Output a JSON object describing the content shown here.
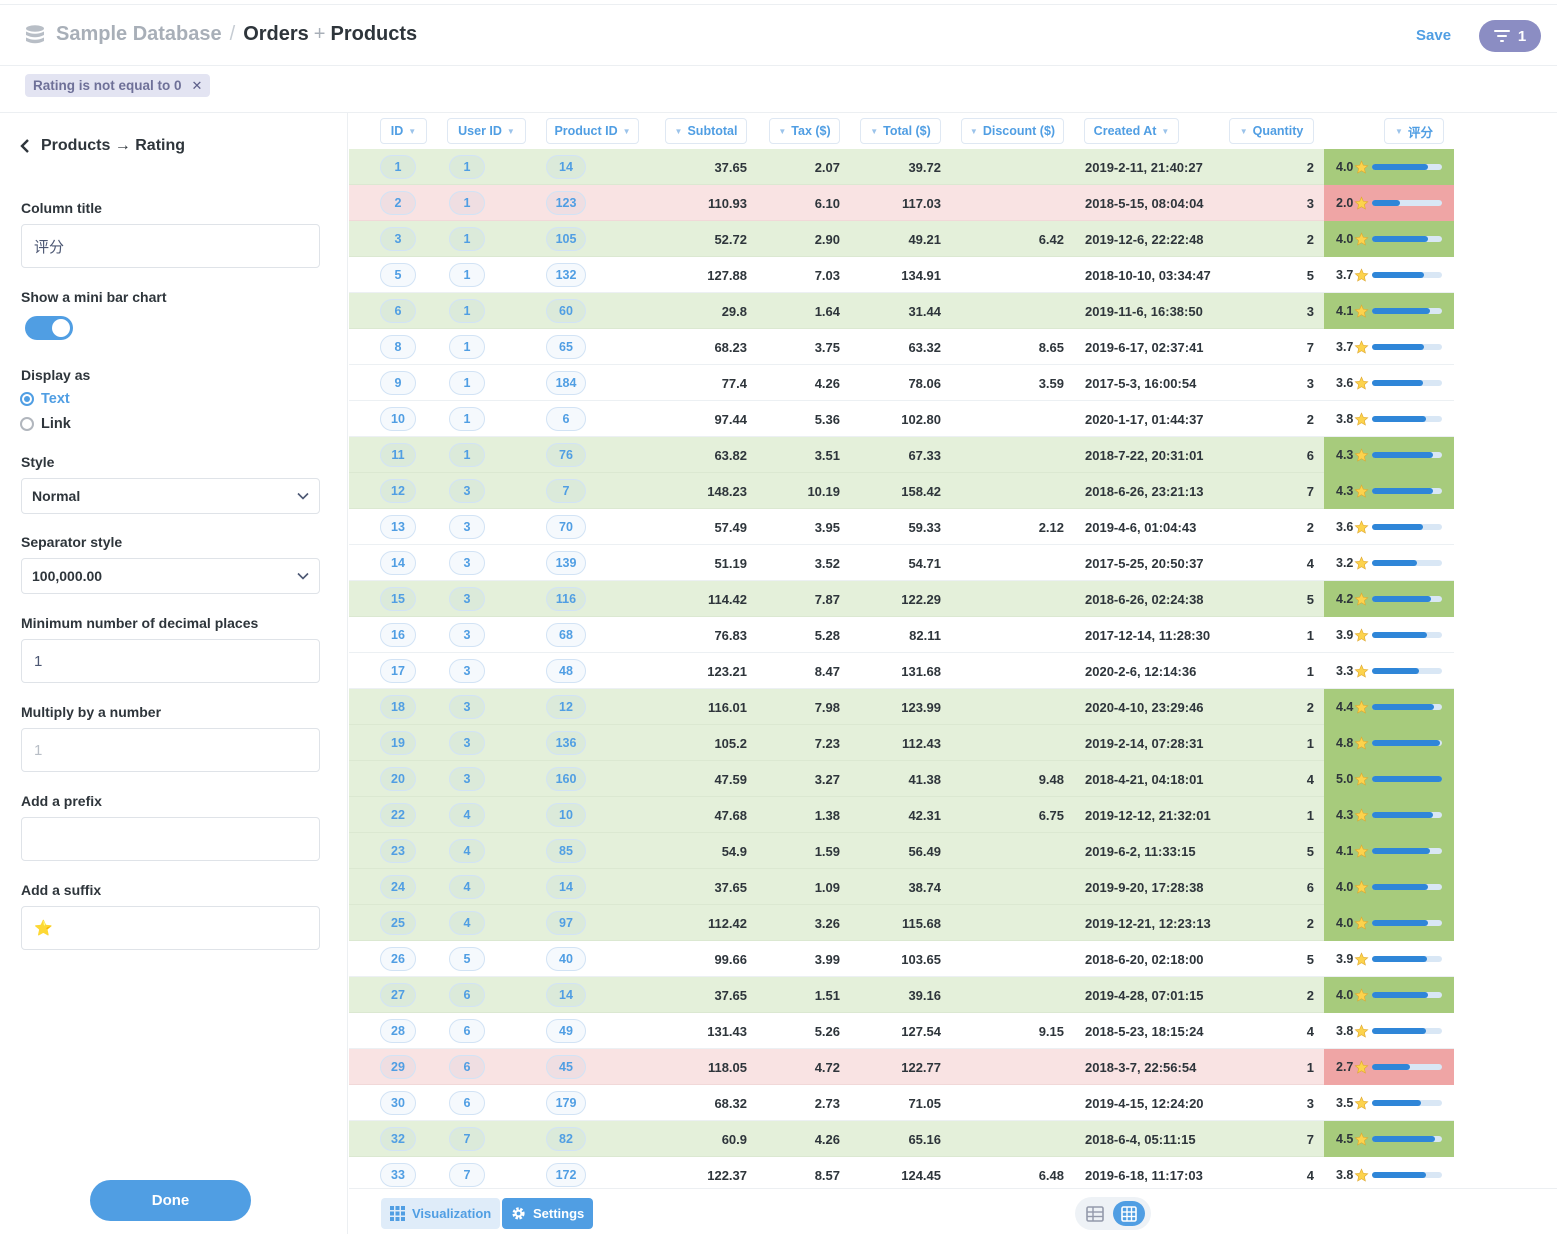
{
  "header": {
    "database": "Sample Database",
    "separator": "/",
    "table_primary": "Orders",
    "plus": "+",
    "table_joined": "Products",
    "save_label": "Save",
    "filter_count": "1"
  },
  "filter": {
    "label": "Rating is not equal to 0",
    "close": "✕"
  },
  "sidebar": {
    "back_label": "Products → Rating",
    "column_title_label": "Column title",
    "column_title_value": "评分",
    "mini_bar_label": "Show a mini bar chart",
    "mini_bar_on": true,
    "display_as_label": "Display as",
    "display_options": [
      "Text",
      "Link"
    ],
    "display_selected": "Text",
    "style_label": "Style",
    "style_value": "Normal",
    "separator_label": "Separator style",
    "separator_value": "100,000.00",
    "decimals_label": "Minimum number of decimal places",
    "decimals_value": "1",
    "multiply_label": "Multiply by a number",
    "multiply_placeholder": "1",
    "prefix_label": "Add a prefix",
    "prefix_value": "",
    "suffix_label": "Add a suffix",
    "suffix_value": "⭐",
    "done_label": "Done"
  },
  "table": {
    "columns": [
      "ID",
      "User ID",
      "Product ID",
      "Subtotal",
      "Tax ($)",
      "Total ($)",
      "Discount ($)",
      "Created At",
      "Quantity",
      "评分"
    ],
    "rating_suffix": "⭐",
    "rating_max": 5,
    "rows": [
      {
        "id": "1",
        "user": "1",
        "product": "14",
        "subtotal": "37.65",
        "tax": "2.07",
        "total": "39.72",
        "discount": "",
        "created": "2019-2-11, 21:40:27",
        "qty": "2",
        "rating": "4.0",
        "tone": "green"
      },
      {
        "id": "2",
        "user": "1",
        "product": "123",
        "subtotal": "110.93",
        "tax": "6.10",
        "total": "117.03",
        "discount": "",
        "created": "2018-5-15, 08:04:04",
        "qty": "3",
        "rating": "2.0",
        "tone": "red"
      },
      {
        "id": "3",
        "user": "1",
        "product": "105",
        "subtotal": "52.72",
        "tax": "2.90",
        "total": "49.21",
        "discount": "6.42",
        "created": "2019-12-6, 22:22:48",
        "qty": "2",
        "rating": "4.0",
        "tone": "green"
      },
      {
        "id": "5",
        "user": "1",
        "product": "132",
        "subtotal": "127.88",
        "tax": "7.03",
        "total": "134.91",
        "discount": "",
        "created": "2018-10-10, 03:34:47",
        "qty": "5",
        "rating": "3.7",
        "tone": ""
      },
      {
        "id": "6",
        "user": "1",
        "product": "60",
        "subtotal": "29.8",
        "tax": "1.64",
        "total": "31.44",
        "discount": "",
        "created": "2019-11-6, 16:38:50",
        "qty": "3",
        "rating": "4.1",
        "tone": "green"
      },
      {
        "id": "8",
        "user": "1",
        "product": "65",
        "subtotal": "68.23",
        "tax": "3.75",
        "total": "63.32",
        "discount": "8.65",
        "created": "2019-6-17, 02:37:41",
        "qty": "7",
        "rating": "3.7",
        "tone": ""
      },
      {
        "id": "9",
        "user": "1",
        "product": "184",
        "subtotal": "77.4",
        "tax": "4.26",
        "total": "78.06",
        "discount": "3.59",
        "created": "2017-5-3, 16:00:54",
        "qty": "3",
        "rating": "3.6",
        "tone": ""
      },
      {
        "id": "10",
        "user": "1",
        "product": "6",
        "subtotal": "97.44",
        "tax": "5.36",
        "total": "102.80",
        "discount": "",
        "created": "2020-1-17, 01:44:37",
        "qty": "2",
        "rating": "3.8",
        "tone": ""
      },
      {
        "id": "11",
        "user": "1",
        "product": "76",
        "subtotal": "63.82",
        "tax": "3.51",
        "total": "67.33",
        "discount": "",
        "created": "2018-7-22, 20:31:01",
        "qty": "6",
        "rating": "4.3",
        "tone": "green"
      },
      {
        "id": "12",
        "user": "3",
        "product": "7",
        "subtotal": "148.23",
        "tax": "10.19",
        "total": "158.42",
        "discount": "",
        "created": "2018-6-26, 23:21:13",
        "qty": "7",
        "rating": "4.3",
        "tone": "green"
      },
      {
        "id": "13",
        "user": "3",
        "product": "70",
        "subtotal": "57.49",
        "tax": "3.95",
        "total": "59.33",
        "discount": "2.12",
        "created": "2019-4-6, 01:04:43",
        "qty": "2",
        "rating": "3.6",
        "tone": ""
      },
      {
        "id": "14",
        "user": "3",
        "product": "139",
        "subtotal": "51.19",
        "tax": "3.52",
        "total": "54.71",
        "discount": "",
        "created": "2017-5-25, 20:50:37",
        "qty": "4",
        "rating": "3.2",
        "tone": ""
      },
      {
        "id": "15",
        "user": "3",
        "product": "116",
        "subtotal": "114.42",
        "tax": "7.87",
        "total": "122.29",
        "discount": "",
        "created": "2018-6-26, 02:24:38",
        "qty": "5",
        "rating": "4.2",
        "tone": "green"
      },
      {
        "id": "16",
        "user": "3",
        "product": "68",
        "subtotal": "76.83",
        "tax": "5.28",
        "total": "82.11",
        "discount": "",
        "created": "2017-12-14, 11:28:30",
        "qty": "1",
        "rating": "3.9",
        "tone": ""
      },
      {
        "id": "17",
        "user": "3",
        "product": "48",
        "subtotal": "123.21",
        "tax": "8.47",
        "total": "131.68",
        "discount": "",
        "created": "2020-2-6, 12:14:36",
        "qty": "1",
        "rating": "3.3",
        "tone": ""
      },
      {
        "id": "18",
        "user": "3",
        "product": "12",
        "subtotal": "116.01",
        "tax": "7.98",
        "total": "123.99",
        "discount": "",
        "created": "2020-4-10, 23:29:46",
        "qty": "2",
        "rating": "4.4",
        "tone": "green"
      },
      {
        "id": "19",
        "user": "3",
        "product": "136",
        "subtotal": "105.2",
        "tax": "7.23",
        "total": "112.43",
        "discount": "",
        "created": "2019-2-14, 07:28:31",
        "qty": "1",
        "rating": "4.8",
        "tone": "green"
      },
      {
        "id": "20",
        "user": "3",
        "product": "160",
        "subtotal": "47.59",
        "tax": "3.27",
        "total": "41.38",
        "discount": "9.48",
        "created": "2018-4-21, 04:18:01",
        "qty": "4",
        "rating": "5.0",
        "tone": "green"
      },
      {
        "id": "22",
        "user": "4",
        "product": "10",
        "subtotal": "47.68",
        "tax": "1.38",
        "total": "42.31",
        "discount": "6.75",
        "created": "2019-12-12, 21:32:01",
        "qty": "1",
        "rating": "4.3",
        "tone": "green"
      },
      {
        "id": "23",
        "user": "4",
        "product": "85",
        "subtotal": "54.9",
        "tax": "1.59",
        "total": "56.49",
        "discount": "",
        "created": "2019-6-2, 11:33:15",
        "qty": "5",
        "rating": "4.1",
        "tone": "green"
      },
      {
        "id": "24",
        "user": "4",
        "product": "14",
        "subtotal": "37.65",
        "tax": "1.09",
        "total": "38.74",
        "discount": "",
        "created": "2019-9-20, 17:28:38",
        "qty": "6",
        "rating": "4.0",
        "tone": "green"
      },
      {
        "id": "25",
        "user": "4",
        "product": "97",
        "subtotal": "112.42",
        "tax": "3.26",
        "total": "115.68",
        "discount": "",
        "created": "2019-12-21, 12:23:13",
        "qty": "2",
        "rating": "4.0",
        "tone": "green"
      },
      {
        "id": "26",
        "user": "5",
        "product": "40",
        "subtotal": "99.66",
        "tax": "3.99",
        "total": "103.65",
        "discount": "",
        "created": "2018-6-20, 02:18:00",
        "qty": "5",
        "rating": "3.9",
        "tone": ""
      },
      {
        "id": "27",
        "user": "6",
        "product": "14",
        "subtotal": "37.65",
        "tax": "1.51",
        "total": "39.16",
        "discount": "",
        "created": "2019-4-28, 07:01:15",
        "qty": "2",
        "rating": "4.0",
        "tone": "green"
      },
      {
        "id": "28",
        "user": "6",
        "product": "49",
        "subtotal": "131.43",
        "tax": "5.26",
        "total": "127.54",
        "discount": "9.15",
        "created": "2018-5-23, 18:15:24",
        "qty": "4",
        "rating": "3.8",
        "tone": ""
      },
      {
        "id": "29",
        "user": "6",
        "product": "45",
        "subtotal": "118.05",
        "tax": "4.72",
        "total": "122.77",
        "discount": "",
        "created": "2018-3-7, 22:56:54",
        "qty": "1",
        "rating": "2.7",
        "tone": "red"
      },
      {
        "id": "30",
        "user": "6",
        "product": "179",
        "subtotal": "68.32",
        "tax": "2.73",
        "total": "71.05",
        "discount": "",
        "created": "2019-4-15, 12:24:20",
        "qty": "3",
        "rating": "3.5",
        "tone": ""
      },
      {
        "id": "32",
        "user": "7",
        "product": "82",
        "subtotal": "60.9",
        "tax": "4.26",
        "total": "65.16",
        "discount": "",
        "created": "2018-6-4, 05:11:15",
        "qty": "7",
        "rating": "4.5",
        "tone": "green"
      },
      {
        "id": "33",
        "user": "7",
        "product": "172",
        "subtotal": "122.37",
        "tax": "8.57",
        "total": "124.45",
        "discount": "6.48",
        "created": "2019-6-18, 11:17:03",
        "qty": "4",
        "rating": "3.8",
        "tone": ""
      }
    ]
  },
  "footer": {
    "visualization_label": "Visualization",
    "settings_label": "Settings"
  },
  "colors": {
    "accent": "#509ee3",
    "row_green": "#e4f0da",
    "row_red": "#f9e3e3",
    "rating_green": "#a7cb7c",
    "rating_red": "#efa5a5",
    "filter_purple": "#8b8dc3"
  }
}
